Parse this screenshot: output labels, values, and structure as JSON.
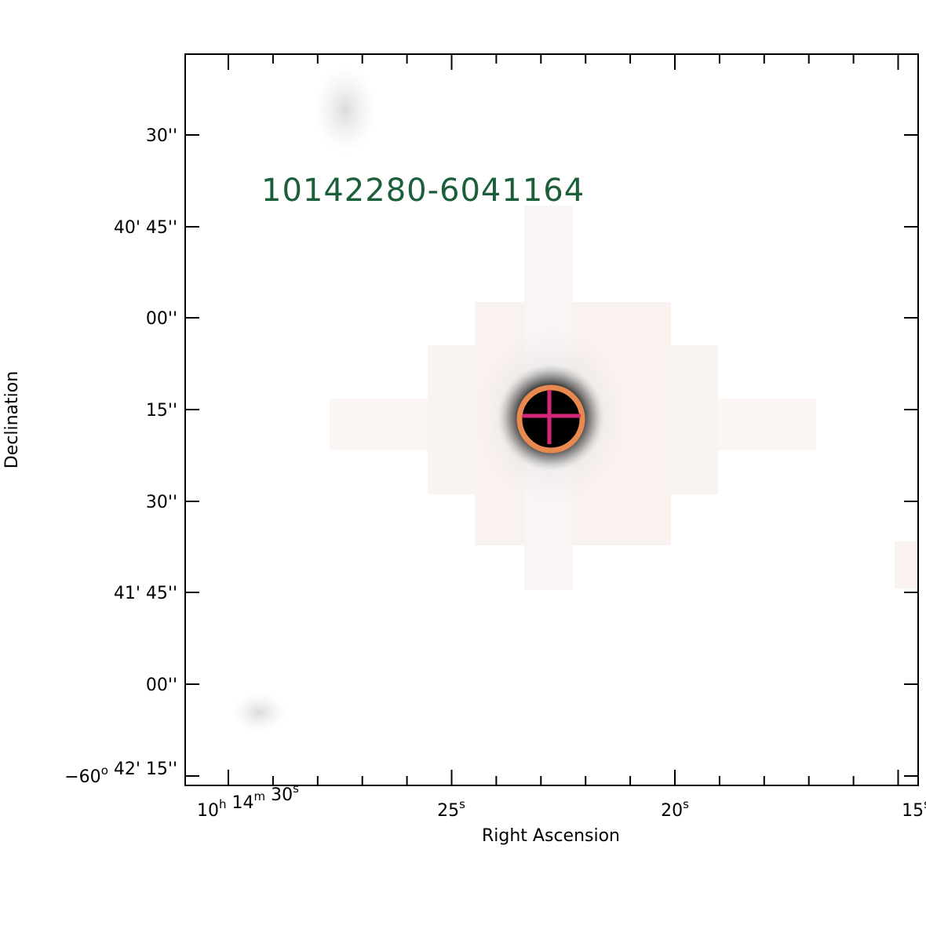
{
  "image": {
    "source_label": "10142280-6041164",
    "x_axis": {
      "title": "Right Ascension",
      "ticks": [
        [
          {
            "t": "10"
          },
          {
            "sup": "h"
          },
          {
            "t": " 14"
          },
          {
            "sup": "m"
          },
          {
            "t": " 30"
          },
          {
            "sup": "s"
          }
        ],
        [
          {
            "t": "25"
          },
          {
            "sup": "s"
          }
        ],
        [
          {
            "t": "20"
          },
          {
            "sup": "s"
          }
        ],
        [
          {
            "t": "15"
          },
          {
            "sup": "s"
          }
        ]
      ]
    },
    "y_axis": {
      "title": "Declination",
      "ticks": [
        [
          {
            "t": "30''"
          }
        ],
        [
          {
            "t": "40' 45''"
          }
        ],
        [
          {
            "t": "00''"
          }
        ],
        [
          {
            "t": "15''"
          }
        ],
        [
          {
            "t": "30''"
          }
        ],
        [
          {
            "t": "41' 45''"
          }
        ],
        [
          {
            "t": "00''"
          }
        ],
        [
          {
            "t": "−60"
          },
          {
            "sup": "o"
          },
          {
            "t": " 42' 15''"
          }
        ]
      ]
    }
  }
}
